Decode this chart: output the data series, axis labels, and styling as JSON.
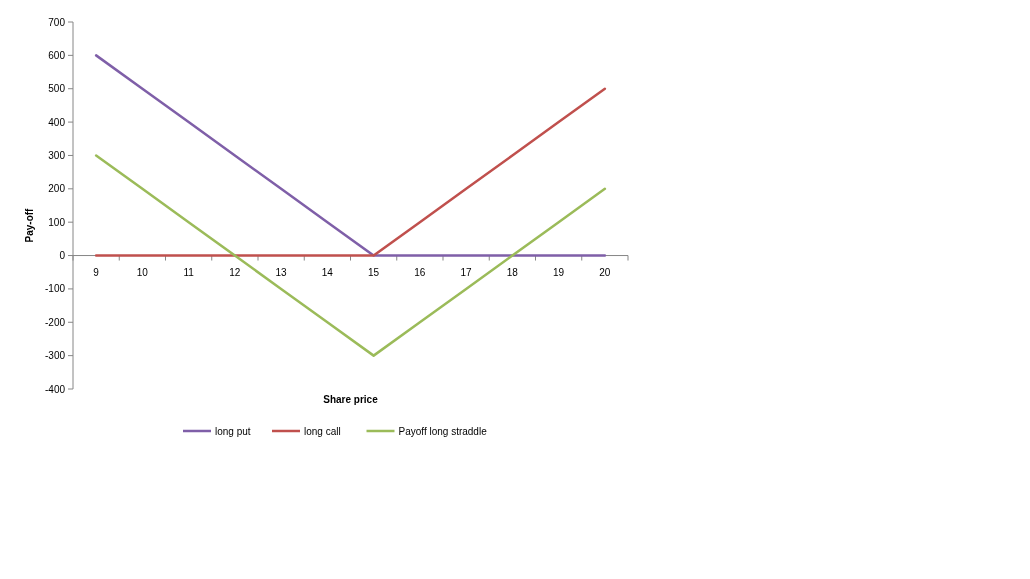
{
  "chart_data": {
    "type": "line",
    "xlabel": "Share price",
    "ylabel": "Pay-off",
    "categories": [
      "9",
      "10",
      "11",
      "12",
      "13",
      "14",
      "15",
      "16",
      "17",
      "18",
      "19",
      "20"
    ],
    "series": [
      {
        "name": "long put",
        "color": "#7f5fa8",
        "values": [
          600,
          500,
          400,
          300,
          200,
          100,
          0,
          0,
          0,
          0,
          0,
          0
        ]
      },
      {
        "name": "long call",
        "color": "#c0504d",
        "values": [
          0,
          0,
          0,
          0,
          0,
          0,
          0,
          100,
          200,
          300,
          400,
          500
        ]
      },
      {
        "name": "Payoff long straddle",
        "color": "#9bbb59",
        "values": [
          300,
          200,
          100,
          0,
          -100,
          -200,
          -300,
          -200,
          -100,
          0,
          100,
          200
        ]
      }
    ],
    "ylim": [
      -400,
      700
    ],
    "yticks": [
      -400,
      -300,
      -200,
      -100,
      0,
      100,
      200,
      300,
      400,
      500,
      600,
      700
    ],
    "grid": false,
    "legend": "bottom",
    "marker": "none",
    "line_style": "solid"
  }
}
